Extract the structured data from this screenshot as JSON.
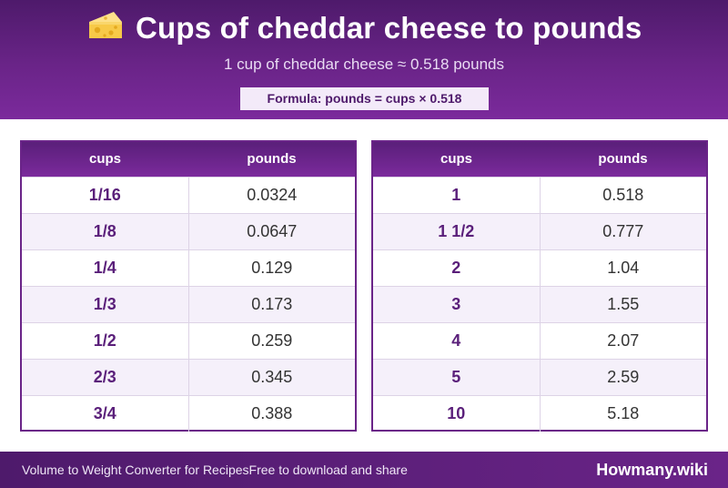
{
  "header": {
    "icon": "cheese-icon",
    "title": "Cups of cheddar cheese to pounds",
    "subtitle": "1 cup of cheddar cheese ≈ 0.518 pounds",
    "formula": "Formula: pounds = cups × 0.518"
  },
  "tables": {
    "left": {
      "headers": [
        "cups",
        "pounds"
      ],
      "rows": [
        {
          "cups": "1/16",
          "pounds": "0.0324"
        },
        {
          "cups": "1/8",
          "pounds": "0.0647"
        },
        {
          "cups": "1/4",
          "pounds": "0.129"
        },
        {
          "cups": "1/3",
          "pounds": "0.173"
        },
        {
          "cups": "1/2",
          "pounds": "0.259"
        },
        {
          "cups": "2/3",
          "pounds": "0.345"
        },
        {
          "cups": "3/4",
          "pounds": "0.388"
        }
      ]
    },
    "right": {
      "headers": [
        "cups",
        "pounds"
      ],
      "rows": [
        {
          "cups": "1",
          "pounds": "0.518"
        },
        {
          "cups": "1 1/2",
          "pounds": "0.777"
        },
        {
          "cups": "2",
          "pounds": "1.04"
        },
        {
          "cups": "3",
          "pounds": "1.55"
        },
        {
          "cups": "4",
          "pounds": "2.07"
        },
        {
          "cups": "5",
          "pounds": "2.59"
        },
        {
          "cups": "10",
          "pounds": "5.18"
        }
      ]
    }
  },
  "footer": {
    "left_text": "Volume to Weight Converter for Recipes",
    "tagline": "Free to download and share",
    "brand": "Howmany.wiki"
  },
  "colors": {
    "header_purple": "#6a2488",
    "accent_purple": "#5a1f7a",
    "cheese_yellow": "#f7c948"
  }
}
